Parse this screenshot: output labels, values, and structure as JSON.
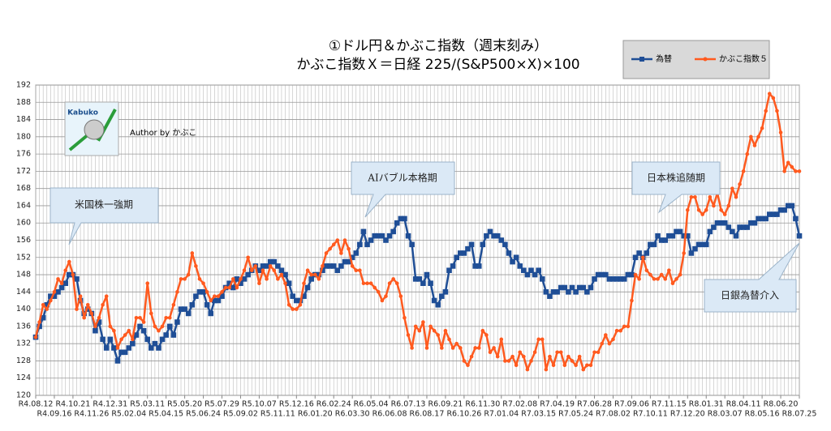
{
  "chart_data": {
    "type": "line",
    "title": "①ドル円＆かぶこ指数（週末刻み）",
    "subtitle": "かぶこ指数Ｘ＝日経 225/(S&P500×X)×100",
    "annotations": [
      "米国株一強期",
      "AIバブル本格期",
      "日本株追随期",
      "日銀為替介入"
    ],
    "author": "Author by かぶこ",
    "logo_text": "Kabuko",
    "ylim": [
      120,
      192
    ],
    "yticks": [
      120,
      124,
      128,
      132,
      136,
      140,
      144,
      148,
      152,
      156,
      160,
      164,
      168,
      172,
      176,
      180,
      184,
      188,
      192
    ],
    "grid": true,
    "legend": "top-right",
    "categories": [
      "R4.08.12",
      null,
      null,
      null,
      null,
      "R4.09.16",
      null,
      null,
      null,
      null,
      "R4.10.21",
      null,
      null,
      null,
      null,
      "R4.11.26",
      null,
      null,
      null,
      null,
      "R4.12.31",
      null,
      null,
      null,
      null,
      "R5.02.04",
      null,
      null,
      null,
      null,
      "R5.03.11",
      null,
      null,
      null,
      null,
      "R5.04.15",
      null,
      null,
      null,
      null,
      "R5.05.20",
      null,
      null,
      null,
      null,
      "R5.06.24",
      null,
      null,
      null,
      null,
      "R5.07.29",
      null,
      null,
      null,
      null,
      "R5.09.02",
      null,
      null,
      null,
      null,
      "R5.10.07",
      null,
      null,
      null,
      null,
      "R5.11.11",
      null,
      null,
      null,
      null,
      "R5.12.16",
      null,
      null,
      null,
      null,
      "R6.01.20",
      null,
      null,
      null,
      null,
      "R6.02.24",
      null,
      null,
      null,
      null,
      "R6.03.30",
      null,
      null,
      null,
      null,
      "R6.05.04",
      null,
      null,
      null,
      null,
      "R6.06.08",
      null,
      null,
      null,
      null,
      "R6.07.13",
      null,
      null,
      null,
      null,
      "R6.08.17",
      null,
      null,
      null,
      null,
      "R6.09.21",
      null,
      null,
      null,
      null,
      "R6.10.26",
      null,
      null,
      null,
      null,
      "R6.11.30",
      null,
      null,
      null,
      null,
      "R7.01.04",
      null,
      null,
      null,
      null,
      "R7.02.08",
      null,
      null,
      null,
      null,
      "R7.03.15",
      null,
      null,
      null,
      null,
      "R7.04.19",
      null,
      null,
      null,
      null,
      "R7.05.24",
      null,
      null,
      null,
      null,
      "R7.06.28",
      null,
      null,
      null,
      null,
      "R7.08.02",
      null,
      null,
      null,
      null,
      "R7.09.06",
      null,
      null,
      null,
      null,
      "R7.10.11",
      null,
      null,
      null,
      null,
      "R7.11.15",
      null,
      null,
      null,
      null,
      "R7.12.20",
      null,
      null,
      null,
      null,
      "R8.01.31",
      null,
      null,
      null,
      null,
      "R8.03.07",
      null,
      null,
      null,
      null,
      "R8.04.11",
      null,
      null,
      null,
      null,
      "R8.05.16",
      null,
      null,
      null,
      null,
      "R8.06.20",
      null,
      null,
      null,
      null,
      "R8.07.25"
    ],
    "series": [
      {
        "name": "為替",
        "color": "#1f4e96",
        "marker": "square",
        "values": [
          133.5,
          136,
          138,
          141,
          143,
          143,
          144,
          145,
          146,
          148,
          148,
          147,
          142,
          139,
          140,
          139,
          135,
          137,
          133,
          131,
          133,
          131,
          128,
          130,
          130,
          131,
          132,
          134,
          136,
          135,
          133,
          131,
          132,
          131,
          133,
          134,
          136,
          134,
          137,
          140,
          140,
          139,
          141,
          143,
          144,
          144,
          141,
          139,
          142,
          142,
          143,
          145,
          146,
          145,
          147,
          146,
          147,
          148,
          149,
          150,
          149,
          150,
          150,
          151,
          151,
          150,
          149,
          148,
          146,
          143,
          142,
          142,
          143,
          145,
          147,
          148,
          148,
          149,
          150,
          150,
          150,
          149,
          150,
          151,
          151,
          152,
          153,
          155,
          158,
          155,
          156,
          157,
          157,
          157,
          156,
          157,
          158,
          160,
          161,
          161,
          157,
          155,
          147,
          147,
          146,
          148,
          146,
          142,
          141,
          143,
          144,
          149,
          150,
          152,
          153,
          153,
          154,
          155,
          150,
          150,
          155,
          157,
          158,
          157,
          157,
          156,
          155,
          153,
          151,
          152,
          150,
          149,
          148,
          149,
          148,
          149,
          147,
          144,
          143,
          144,
          144,
          145,
          145,
          144,
          145,
          144,
          145,
          145,
          144,
          145,
          147,
          148,
          148,
          148,
          147,
          147,
          147,
          147,
          147,
          148,
          148,
          152,
          153,
          152,
          153,
          155,
          155,
          157,
          156,
          156,
          157,
          157,
          158,
          158,
          157,
          157,
          153,
          154,
          155,
          155,
          155,
          158,
          159,
          160,
          160,
          160,
          159,
          158,
          157,
          159,
          159,
          159,
          160,
          160,
          161,
          161,
          161,
          162,
          162,
          162,
          163,
          163,
          164,
          164,
          161,
          157
        ]
      },
      {
        "name": "かぶこ指数５",
        "color": "#ff5a1f",
        "marker": "circle",
        "values": [
          133.5,
          137,
          141,
          140,
          142,
          144,
          147,
          146,
          149,
          151,
          148,
          140,
          143,
          138,
          141,
          139,
          136,
          138,
          141,
          143,
          136,
          135,
          131,
          133,
          134,
          135,
          133,
          138,
          138,
          137,
          146,
          139,
          136,
          135,
          136,
          138,
          138,
          141,
          144,
          147,
          147,
          148,
          153,
          150,
          147,
          146,
          144,
          142,
          143,
          143,
          144,
          145,
          145,
          147,
          145,
          147,
          149,
          152,
          149,
          150,
          146,
          149,
          147,
          150,
          149,
          147,
          148,
          146,
          141,
          140,
          140,
          141,
          146,
          149,
          148,
          148,
          147,
          150,
          153,
          154,
          155,
          156,
          153,
          156,
          154,
          150,
          149,
          149,
          146,
          146,
          146,
          145,
          144,
          142,
          143,
          146,
          147,
          146,
          143,
          138,
          134,
          131,
          136,
          135,
          137,
          131,
          136,
          135,
          134,
          131,
          135,
          133,
          131,
          132,
          131,
          128,
          127,
          129,
          131,
          131,
          135,
          134,
          130,
          131,
          129,
          133,
          128,
          128,
          129,
          127,
          130,
          129,
          126,
          128,
          130,
          133,
          133,
          126,
          129,
          127,
          130,
          130,
          127,
          129,
          128,
          127,
          129,
          126,
          127,
          127,
          130,
          130,
          132,
          134,
          132,
          133,
          135,
          135,
          136,
          136,
          142,
          148,
          147,
          152,
          149,
          148,
          147,
          147,
          148,
          147,
          149,
          146,
          147,
          148,
          153,
          163,
          166,
          166,
          163,
          162,
          163,
          166,
          164,
          167,
          163,
          162,
          164,
          168,
          166,
          169,
          172,
          176,
          180,
          178,
          180,
          182,
          186,
          190,
          189,
          186,
          181,
          172,
          174,
          173,
          172,
          172
        ]
      }
    ]
  }
}
